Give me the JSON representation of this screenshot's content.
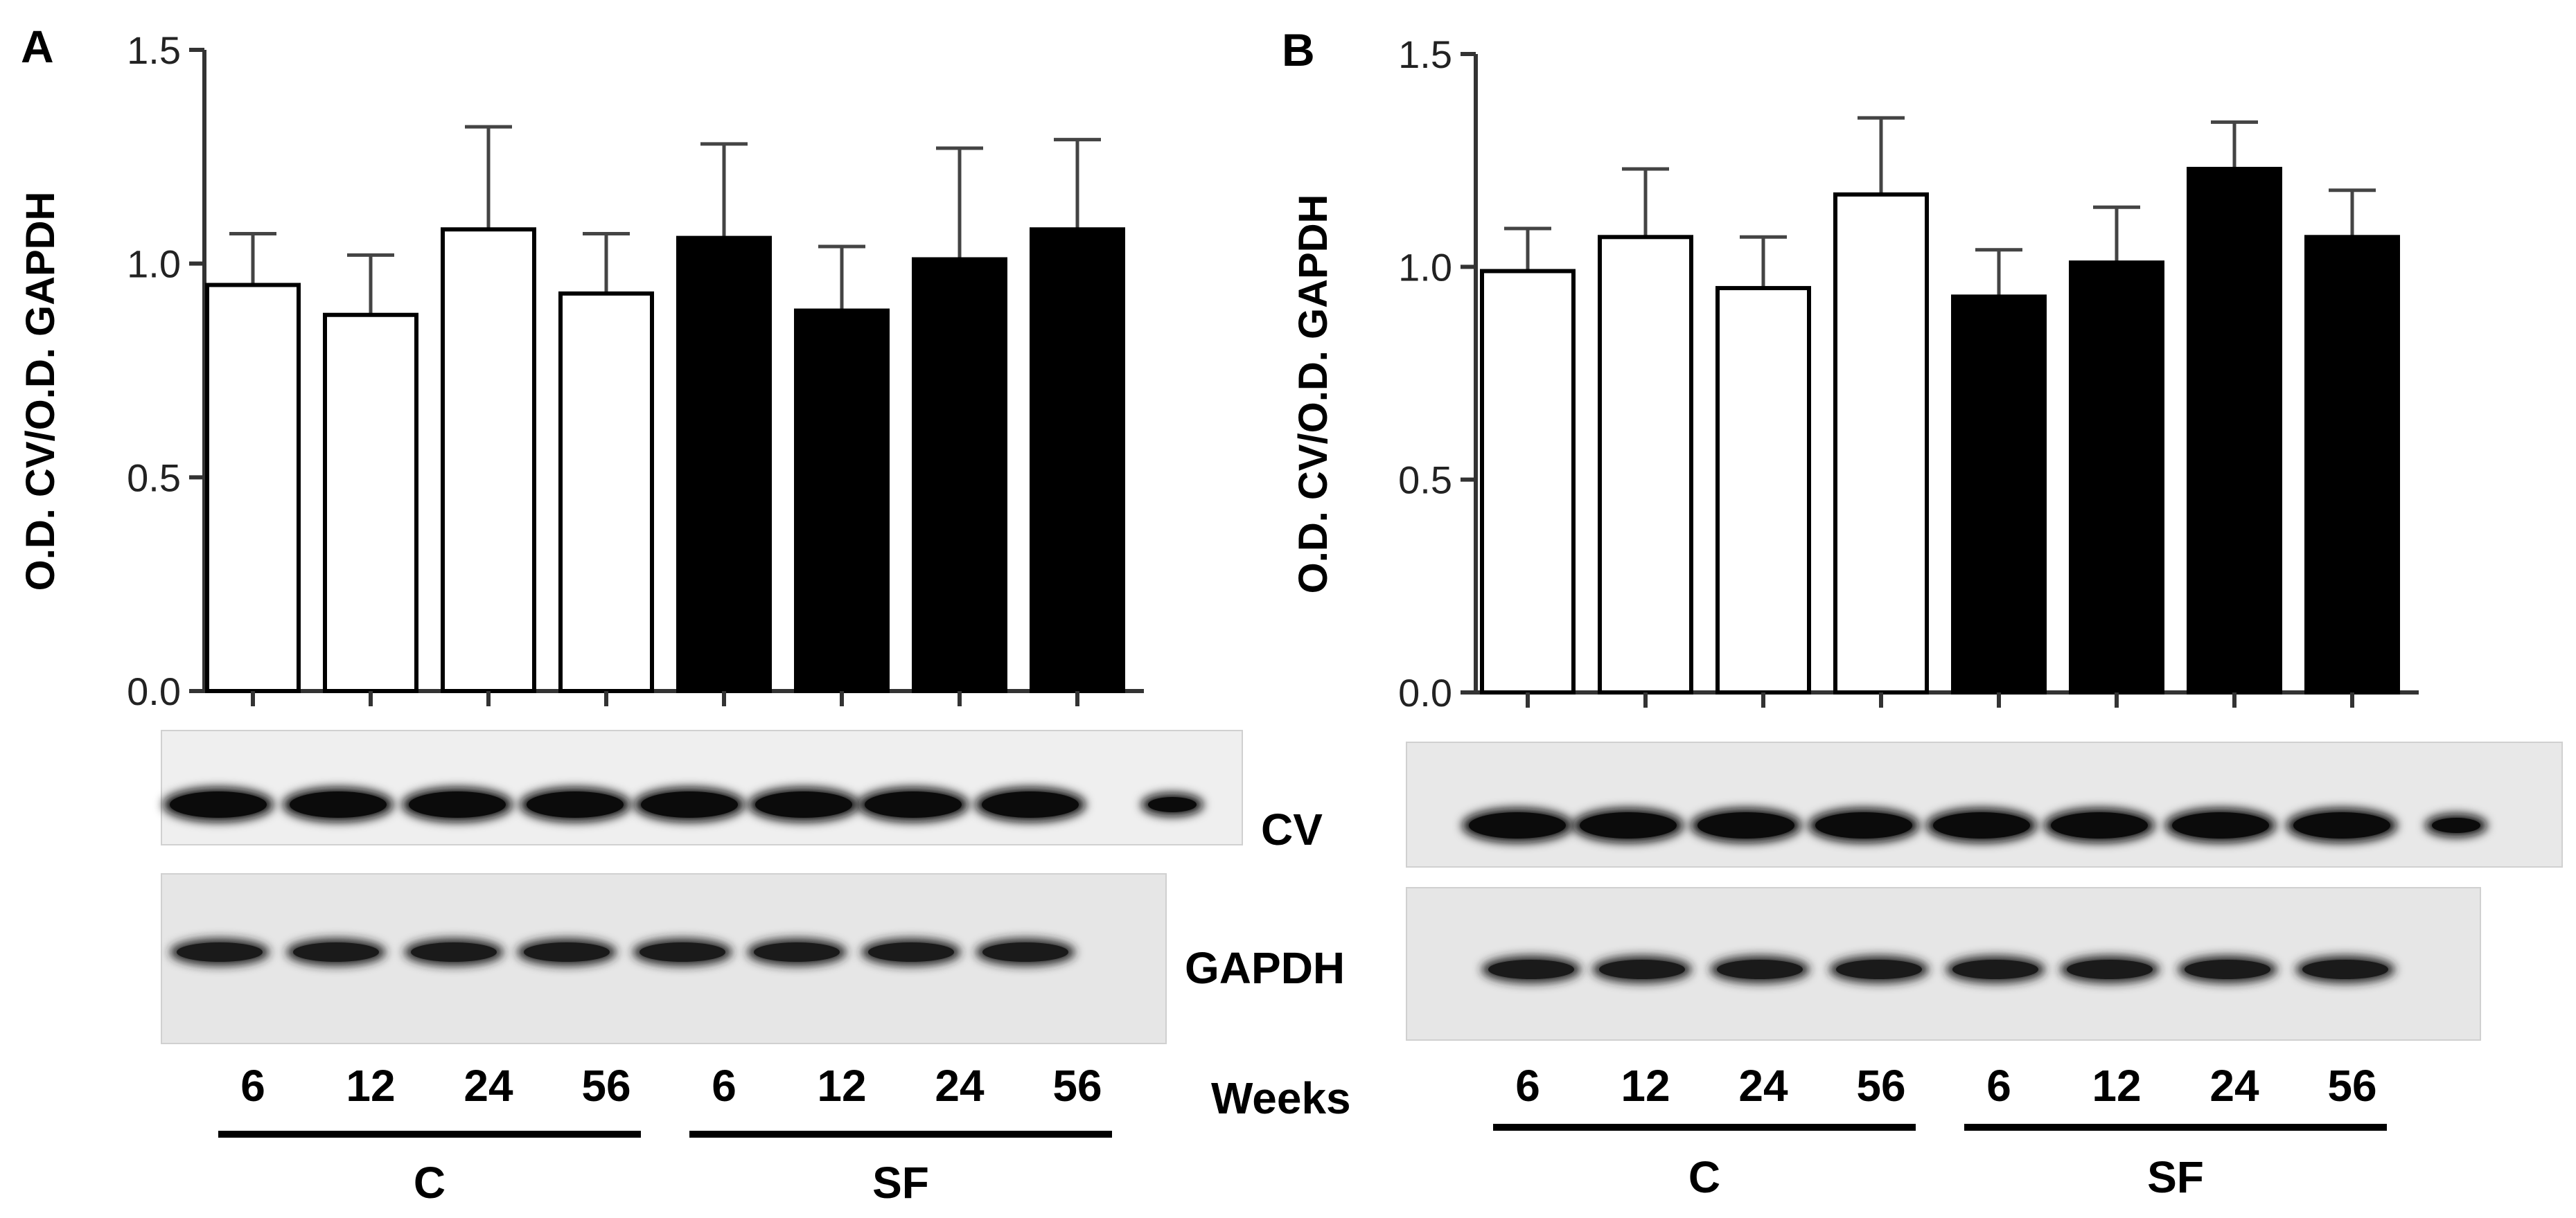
{
  "colors": {
    "control": "#ffffff",
    "sf": "#000000",
    "ink": "#000000"
  },
  "row_labels": {
    "cv": "CV",
    "gapdh": "GAPDH"
  },
  "weeks_label": "Weeks",
  "chart_data": [
    {
      "type": "bar",
      "panel_label": "A",
      "ylabel": "O.D. CV/O.D. GAPDH",
      "ylim": [
        0,
        1.5
      ],
      "yticks": [
        "0.0",
        "0.5",
        "1.0",
        "1.5"
      ],
      "categories": [
        "6",
        "12",
        "24",
        "56",
        "6",
        "12",
        "24",
        "56"
      ],
      "groups": [
        {
          "label": "C",
          "span": [
            0,
            3
          ]
        },
        {
          "label": "SF",
          "span": [
            4,
            7
          ]
        }
      ],
      "series": [
        {
          "values": [
            0.95,
            0.88,
            1.08,
            0.93,
            1.06,
            0.89,
            1.01,
            1.08
          ],
          "errors": [
            0.12,
            0.14,
            0.24,
            0.14,
            0.22,
            0.15,
            0.26,
            0.21
          ]
        }
      ],
      "bar_fill": [
        "control",
        "control",
        "control",
        "control",
        "sf",
        "sf",
        "sf",
        "sf"
      ],
      "blot": {
        "cv_lanes": 9,
        "gapdh_lanes": 8
      }
    },
    {
      "type": "bar",
      "panel_label": "B",
      "ylabel": "O.D. CV/O.D. GAPDH",
      "ylim": [
        0,
        1.5
      ],
      "yticks": [
        "0.0",
        "0.5",
        "1.0",
        "1.5"
      ],
      "categories": [
        "6",
        "12",
        "24",
        "56",
        "6",
        "12",
        "24",
        "56"
      ],
      "groups": [
        {
          "label": "C",
          "span": [
            0,
            3
          ]
        },
        {
          "label": "SF",
          "span": [
            4,
            7
          ]
        }
      ],
      "series": [
        {
          "values": [
            0.99,
            1.07,
            0.95,
            1.17,
            0.93,
            1.01,
            1.23,
            1.07
          ],
          "errors": [
            0.1,
            0.16,
            0.12,
            0.18,
            0.11,
            0.13,
            0.11,
            0.11
          ]
        }
      ],
      "bar_fill": [
        "control",
        "control",
        "control",
        "control",
        "sf",
        "sf",
        "sf",
        "sf"
      ],
      "blot": {
        "cv_lanes": 9,
        "gapdh_lanes": 8
      }
    }
  ]
}
